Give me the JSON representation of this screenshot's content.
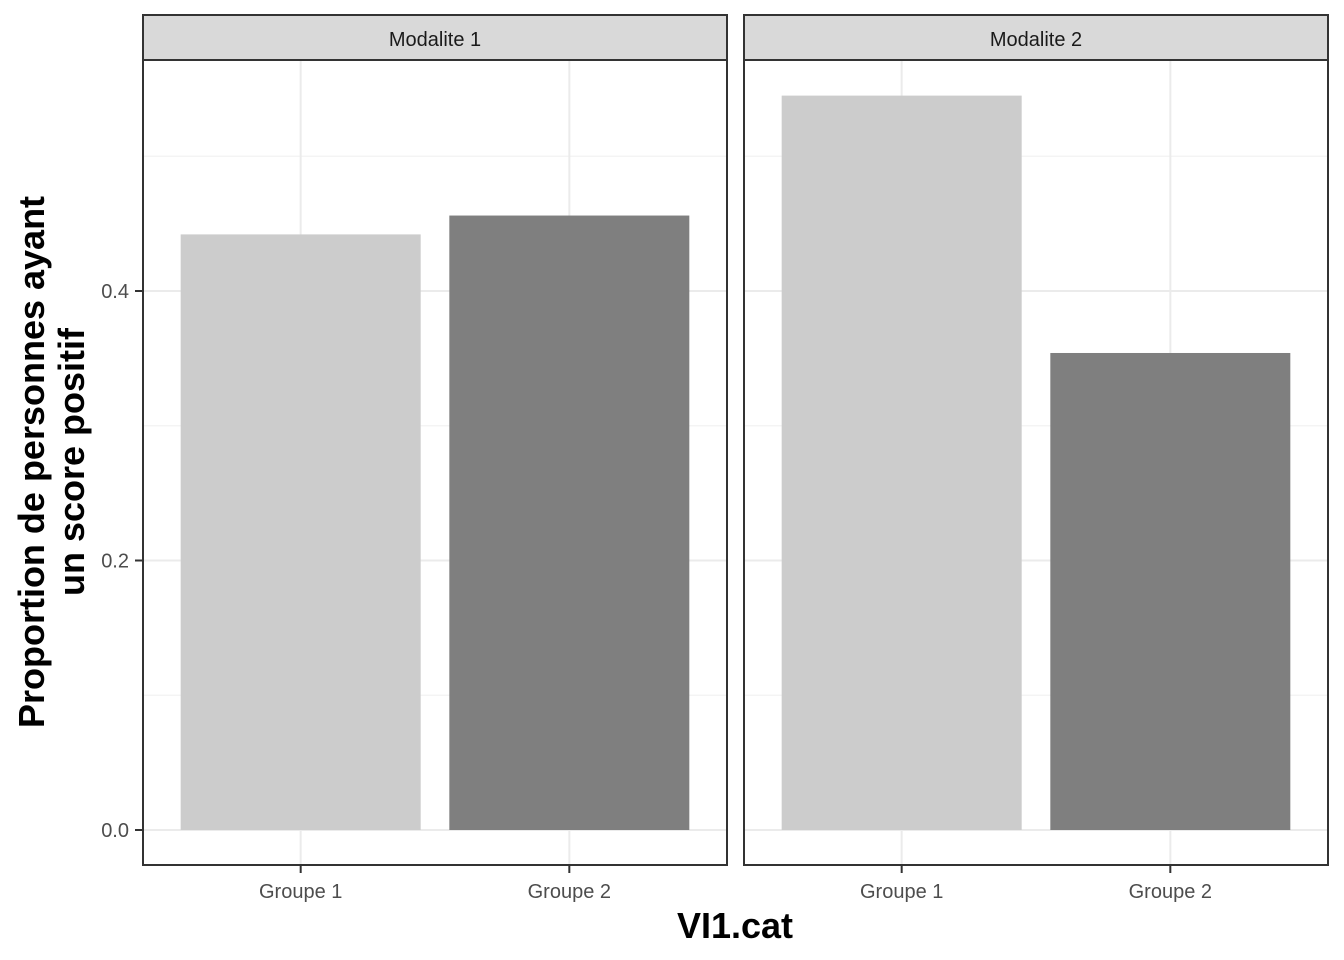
{
  "chart_data": {
    "type": "bar",
    "xlabel": "VI1.cat",
    "ylabel_lines": [
      "Proportion de personnes ayant",
      "un score positif"
    ],
    "categories": [
      "Groupe 1",
      "Groupe 2"
    ],
    "ylim": [
      0,
      0.56
    ],
    "yticks": [
      0.0,
      0.2,
      0.4
    ],
    "ytick_labels": [
      "0.0",
      "0.2",
      "0.4"
    ],
    "grid": true,
    "bar_colors": [
      "#cccccc",
      "#7f7f7f"
    ],
    "panels": [
      {
        "label": "Modalite 1",
        "values": [
          0.442,
          0.456
        ]
      },
      {
        "label": "Modalite 2",
        "values": [
          0.545,
          0.354
        ]
      }
    ]
  }
}
